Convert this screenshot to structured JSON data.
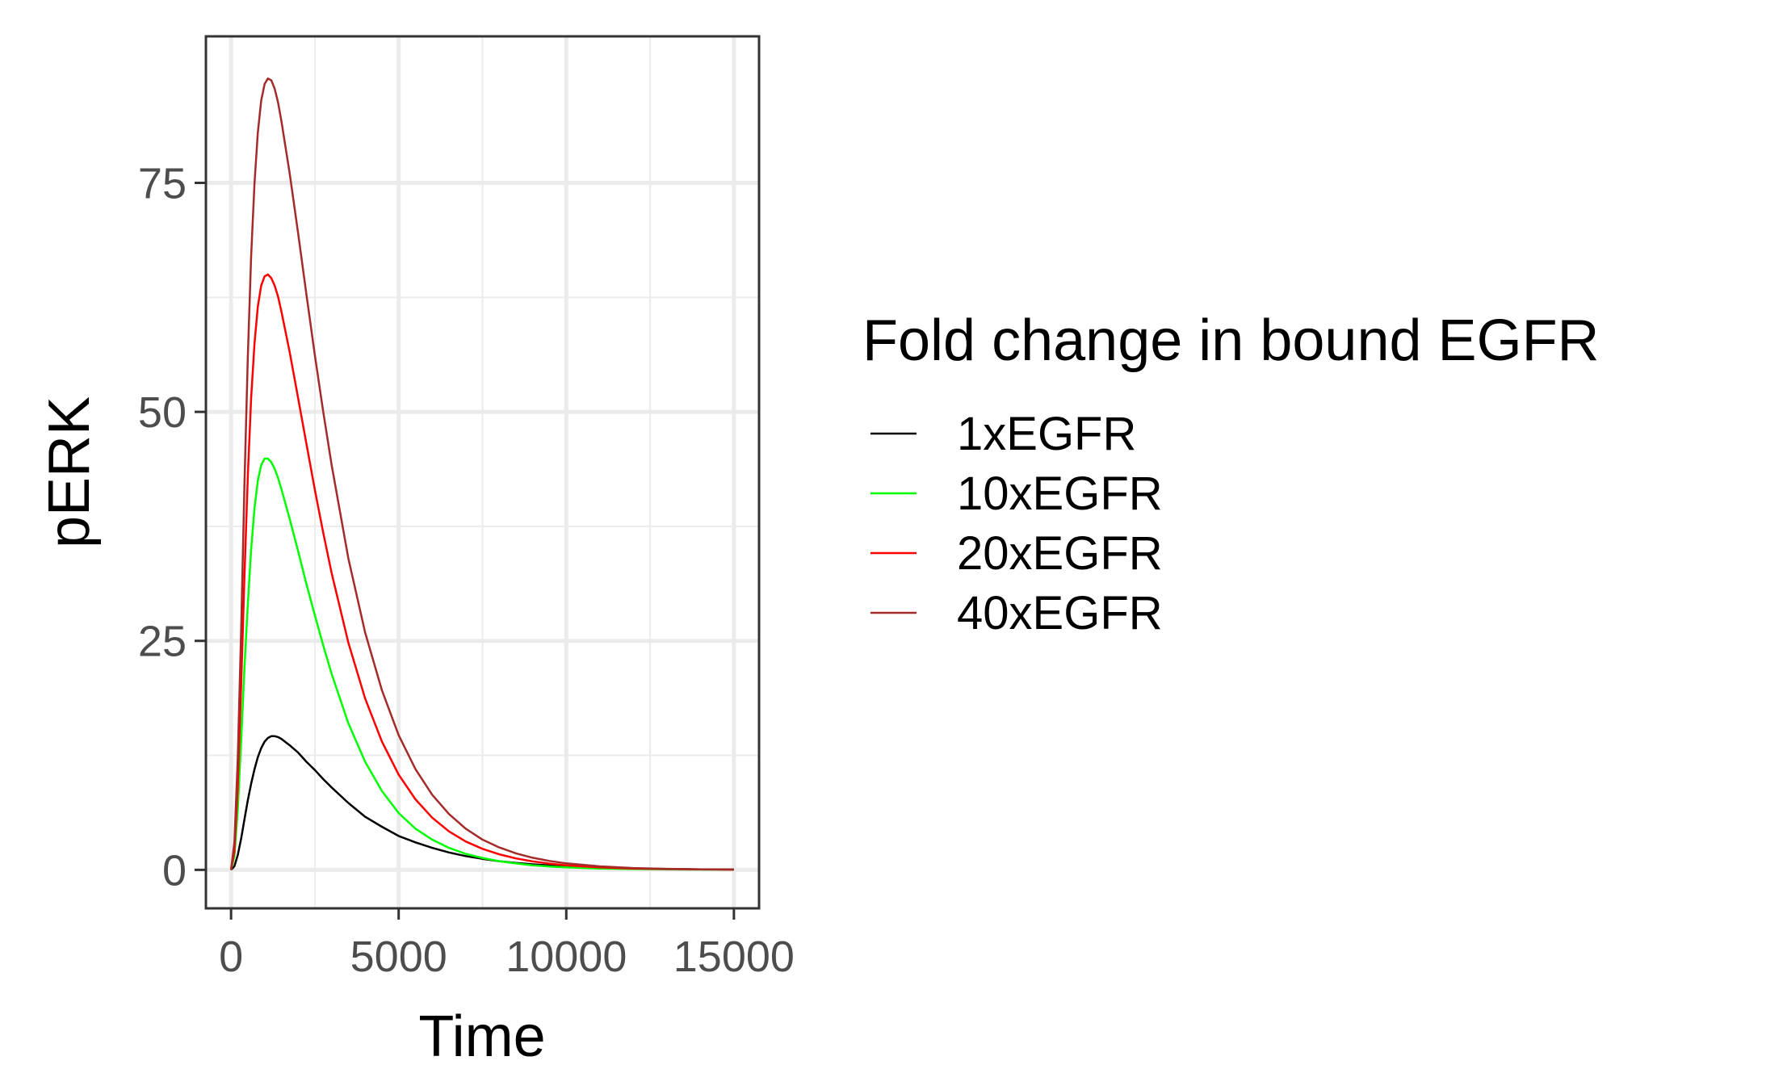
{
  "chart_data": {
    "type": "line",
    "xlabel": "Time",
    "ylabel": "pERK",
    "xlim": [
      -750,
      15750
    ],
    "ylim": [
      -4.2,
      91
    ],
    "x_ticks": [
      0,
      5000,
      10000,
      15000
    ],
    "x_tick_labels": [
      "0",
      "5000",
      "10000",
      "15000"
    ],
    "y_ticks": [
      0,
      25,
      50,
      75
    ],
    "y_tick_labels": [
      "0",
      "25",
      "50",
      "75"
    ],
    "x_minor": [
      2500,
      7500,
      12500
    ],
    "y_minor": [
      12.5,
      37.5,
      62.5
    ],
    "grid": true,
    "legend": {
      "title": "Fold change in bound EGFR",
      "position": "right"
    },
    "x": [
      0,
      100,
      200,
      300,
      400,
      500,
      600,
      700,
      800,
      900,
      1000,
      1100,
      1200,
      1300,
      1400,
      1500,
      1750,
      2000,
      2250,
      2500,
      2750,
      3000,
      3500,
      4000,
      4500,
      5000,
      5500,
      6000,
      6500,
      7000,
      7500,
      8000,
      8500,
      9000,
      9500,
      10000,
      11000,
      12000,
      13000,
      14000,
      15000
    ],
    "series": [
      {
        "name": "1xEGFR",
        "color": "#000000",
        "values": [
          0,
          0.4,
          1.6,
          3.4,
          5.5,
          7.6,
          9.4,
          11.0,
          12.3,
          13.3,
          14.0,
          14.4,
          14.6,
          14.6,
          14.5,
          14.3,
          13.6,
          12.8,
          11.8,
          10.9,
          9.9,
          9.0,
          7.3,
          5.8,
          4.7,
          3.7,
          3.0,
          2.4,
          1.9,
          1.5,
          1.2,
          0.95,
          0.75,
          0.6,
          0.48,
          0.38,
          0.24,
          0.15,
          0.09,
          0.06,
          0.04
        ]
      },
      {
        "name": "10xEGFR",
        "color": "#00ff00",
        "values": [
          0,
          1.5,
          6.5,
          14,
          22,
          29,
          35,
          39.5,
          42.5,
          44.2,
          44.9,
          44.9,
          44.5,
          43.8,
          42.8,
          41.6,
          38.3,
          34.8,
          31.2,
          27.8,
          24.5,
          21.4,
          16.0,
          11.8,
          8.6,
          6.2,
          4.5,
          3.3,
          2.4,
          1.75,
          1.3,
          0.95,
          0.7,
          0.5,
          0.37,
          0.27,
          0.15,
          0.08,
          0.05,
          0.03,
          0.02
        ]
      },
      {
        "name": "20xEGFR",
        "color": "#ff0000",
        "values": [
          0,
          2,
          9,
          20,
          32,
          43,
          51.5,
          57.5,
          61.5,
          63.8,
          64.8,
          65.0,
          64.6,
          63.8,
          62.6,
          61.0,
          56.5,
          51.5,
          46.5,
          41.5,
          36.8,
          32.4,
          24.8,
          18.7,
          14.0,
          10.4,
          7.7,
          5.7,
          4.2,
          3.1,
          2.3,
          1.7,
          1.25,
          0.92,
          0.68,
          0.5,
          0.27,
          0.15,
          0.08,
          0.05,
          0.03
        ]
      },
      {
        "name": "40xEGFR",
        "color": "#a52a2a",
        "values": [
          0,
          3,
          12,
          26,
          42,
          56,
          67,
          75,
          80.5,
          84,
          85.8,
          86.4,
          86.2,
          85.3,
          83.8,
          81.8,
          76.0,
          69.5,
          62.8,
          56.2,
          50.0,
          44.2,
          34.0,
          25.9,
          19.6,
          14.7,
          11.0,
          8.2,
          6.1,
          4.5,
          3.3,
          2.45,
          1.8,
          1.32,
          0.97,
          0.71,
          0.38,
          0.2,
          0.11,
          0.06,
          0.03
        ]
      }
    ]
  }
}
